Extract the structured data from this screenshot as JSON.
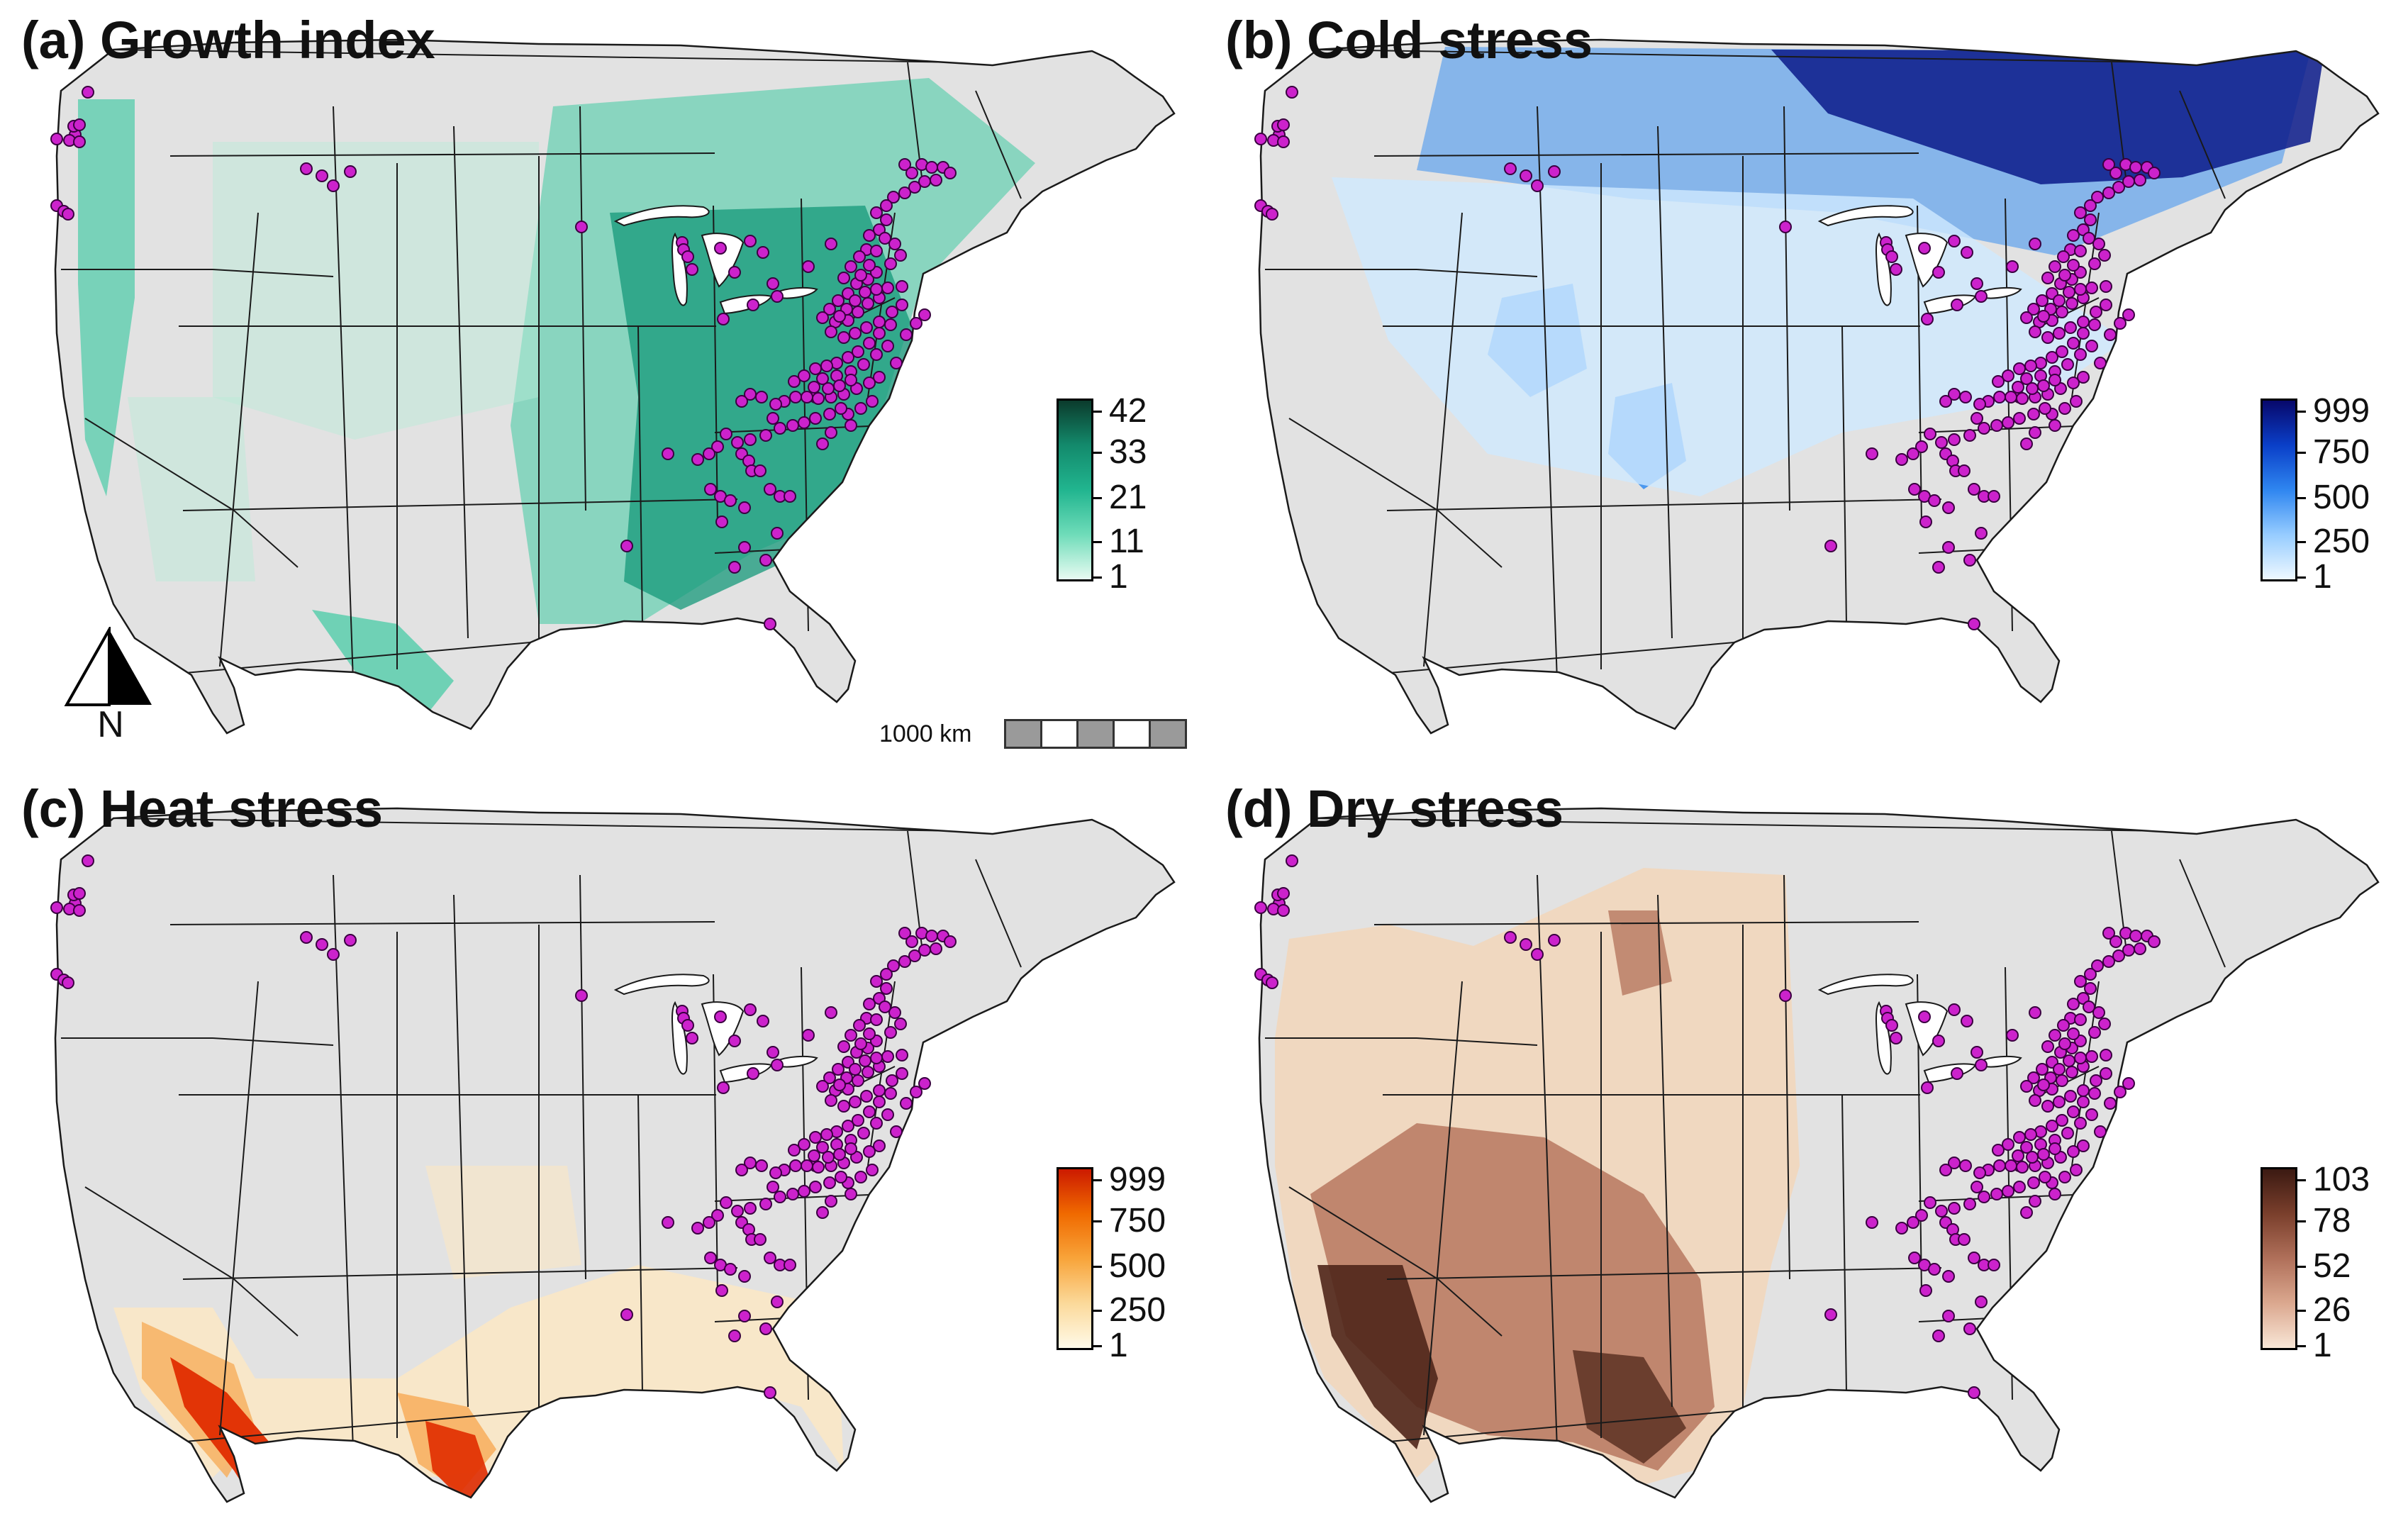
{
  "figure": "Four-panel map of North America showing growth index and stress indices with sampled locations",
  "panels": [
    {
      "id": "a",
      "title": "(a) Growth index",
      "legend": {
        "labels": [
          "42",
          "33",
          "21",
          "11",
          "1"
        ],
        "colors": [
          "#0b3b2c",
          "#138a6c",
          "#21b58f",
          "#6fdcb9",
          "#e8fbf2"
        ]
      },
      "map_colors": {
        "low": "#b9ecd8",
        "mid": "#3fcaa3",
        "high": "#16987a"
      }
    },
    {
      "id": "b",
      "title": "(b) Cold stress",
      "legend": {
        "labels": [
          "999",
          "750",
          "500",
          "250",
          "1"
        ],
        "colors": [
          "#08086b",
          "#0a3fc8",
          "#2f86f0",
          "#96ccff",
          "#eef8ff"
        ]
      },
      "map_colors": {
        "low": "#cfeaff",
        "mid": "#3b8ff0",
        "high": "#0a1a8a"
      }
    },
    {
      "id": "c",
      "title": "(c) Heat stress",
      "legend": {
        "labels": [
          "999",
          "750",
          "500",
          "250",
          "1"
        ],
        "colors": [
          "#cc1a00",
          "#f06a00",
          "#f8a43a",
          "#fbd99a",
          "#fffae8"
        ]
      },
      "map_colors": {
        "low": "#fbe8c4",
        "mid": "#f7b062",
        "high": "#e02c00"
      }
    },
    {
      "id": "d",
      "title": "(d) Dry stress",
      "legend": {
        "labels": [
          "103",
          "78",
          "52",
          "26",
          "1"
        ],
        "colors": [
          "#3b1a12",
          "#7a3f2c",
          "#b0705a",
          "#dba88f",
          "#f8e6d6"
        ]
      },
      "map_colors": {
        "low": "#f2d7bd",
        "mid": "#b7785f",
        "high": "#4f261a"
      }
    }
  ],
  "scale_bar": {
    "label": "1000 km"
  },
  "north_arrow": {
    "label": "N"
  },
  "style": {
    "land_gray": "#e2e2e2",
    "border_color": "#1a1a1a",
    "point_fill": "#cc22cc",
    "point_stroke": "#3a0040"
  }
}
